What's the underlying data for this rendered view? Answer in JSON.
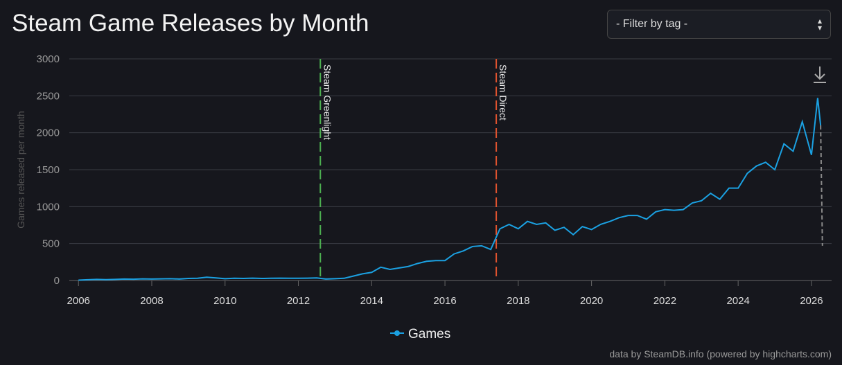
{
  "header": {
    "title": "Steam Game Releases by Month",
    "filter": "- Filter by tag -"
  },
  "chart_data": {
    "type": "line",
    "y_label": "Games released per month",
    "xlim": [
      2005.75,
      2026.55
    ],
    "xticks": [
      2006,
      2008,
      2010,
      2012,
      2014,
      2016,
      2018,
      2020,
      2022,
      2024,
      2026
    ],
    "ylim": [
      0,
      3000
    ],
    "yticks": [
      0,
      500,
      1000,
      1500,
      2000,
      2500,
      3000
    ],
    "grid": true,
    "x": [
      2006,
      2006.25,
      2006.5,
      2006.75,
      2007,
      2007.25,
      2007.5,
      2007.75,
      2008,
      2008.25,
      2008.5,
      2008.75,
      2009,
      2009.25,
      2009.5,
      2009.75,
      2010,
      2010.25,
      2010.5,
      2010.75,
      2011,
      2011.25,
      2011.5,
      2011.75,
      2012,
      2012.25,
      2012.5,
      2012.75,
      2013,
      2013.25,
      2013.5,
      2013.75,
      2014,
      2014.25,
      2014.5,
      2014.75,
      2015,
      2015.25,
      2015.5,
      2015.75,
      2016,
      2016.25,
      2016.5,
      2016.75,
      2017,
      2017.25,
      2017.5,
      2017.75,
      2018,
      2018.25,
      2018.5,
      2018.75,
      2019,
      2019.25,
      2019.5,
      2019.75,
      2020,
      2020.25,
      2020.5,
      2020.75,
      2021,
      2021.25,
      2021.5,
      2021.75,
      2022,
      2022.25,
      2022.5,
      2022.75,
      2023,
      2023.25,
      2023.5,
      2023.75,
      2024,
      2024.25,
      2024.5,
      2024.75,
      2025,
      2025.25,
      2025.5,
      2025.75,
      2026,
      2026.17,
      2026.25
    ],
    "series": [
      {
        "name": "Games",
        "color": "#1ba1e2",
        "values": [
          5,
          10,
          15,
          12,
          15,
          20,
          18,
          22,
          20,
          22,
          25,
          20,
          28,
          30,
          45,
          35,
          25,
          30,
          28,
          32,
          28,
          30,
          32,
          30,
          30,
          32,
          35,
          20,
          25,
          30,
          60,
          90,
          110,
          180,
          150,
          170,
          190,
          230,
          260,
          270,
          270,
          360,
          400,
          460,
          470,
          420,
          700,
          760,
          700,
          800,
          760,
          780,
          680,
          720,
          620,
          730,
          690,
          760,
          800,
          850,
          880,
          880,
          830,
          930,
          960,
          950,
          960,
          1050,
          1080,
          1180,
          1100,
          1250,
          1250,
          1450,
          1550,
          1600,
          1500,
          1850,
          1750,
          2150,
          1700,
          2470,
          2100
        ]
      }
    ],
    "partial": {
      "x": [
        2026.25,
        2026.3
      ],
      "values": [
        2100,
        470
      ],
      "color": "#8a8a8a"
    },
    "annotations": [
      {
        "label": "Steam Greenlight",
        "x": 2012.6,
        "color": "#4caf50"
      },
      {
        "label": "Steam Direct",
        "x": 2017.4,
        "color": "#e0522e"
      }
    ],
    "credits": "data by SteamDB.info (powered by highcharts.com)"
  }
}
